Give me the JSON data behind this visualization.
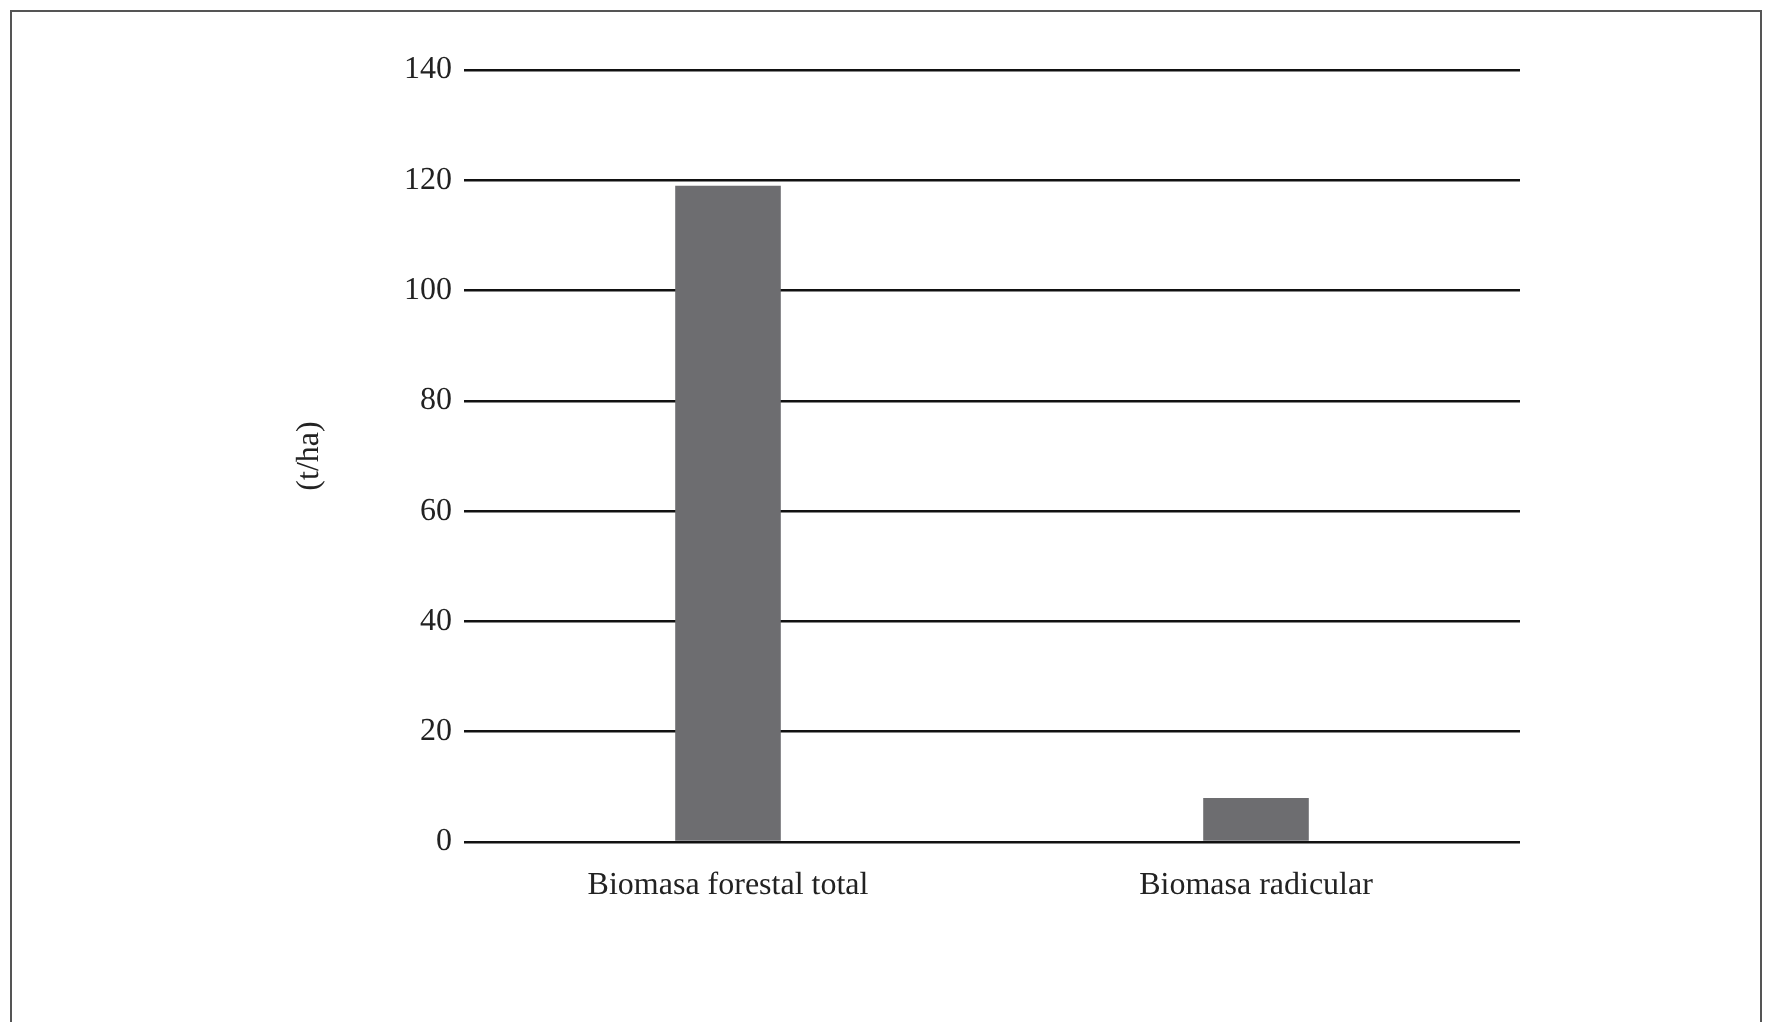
{
  "chart_data": {
    "type": "bar",
    "ylabel": "(t/ha)",
    "categories": [
      "Biomasa forestal total",
      "Biomasa radicular"
    ],
    "values": [
      119,
      8
    ],
    "color": "#6d6d70",
    "ylim": [
      0,
      140
    ],
    "yticks": [
      0,
      20,
      40,
      60,
      80,
      100,
      120,
      140
    ],
    "grid": "y"
  }
}
